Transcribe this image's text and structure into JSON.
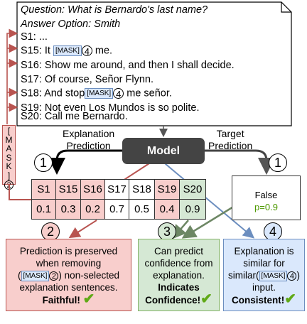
{
  "document": {
    "question": "Question: What is Bernardo's last name?",
    "answer_option": "Answer Option: Smith",
    "lines": [
      {
        "id": "S1:",
        "text": " ..."
      },
      {
        "id": "S15:",
        "pre": " It ",
        "mask": "[MASK]",
        "mask_num": "4",
        "post": " me."
      },
      {
        "id": "S16:",
        "text": " Show me around, and then I shall decide."
      },
      {
        "id": "S17:",
        "text": " Of course, Señor Flynn."
      },
      {
        "id": "S18:",
        "pre": " And stop",
        "mask": "[MASK]",
        "mask_num": "4",
        "post": " me señor."
      },
      {
        "id": "S19:",
        "text": " Not even Los Mundos is so polite."
      },
      {
        "id": "S20:",
        "text": " Call me Bernardo."
      }
    ]
  },
  "side_mask": {
    "letters": [
      "[",
      "M",
      "A",
      "S",
      "K",
      "]"
    ],
    "num": "2"
  },
  "labels": {
    "explanation_prediction_1": "Explanation",
    "explanation_prediction_2": "Prediction",
    "target_prediction_1": "Target",
    "target_prediction_2": "Prediction",
    "model": "Model"
  },
  "steps": {
    "one_left": "1",
    "one_right": "1",
    "two": "2",
    "three": "3",
    "four": "4"
  },
  "table": {
    "headers": [
      "S1",
      "S15",
      "S16",
      "S17",
      "S18",
      "S19",
      "S20"
    ],
    "values": [
      "0.1",
      "0.3",
      "0.2",
      "0.7",
      "0.5",
      "0.4",
      "0.9"
    ]
  },
  "target_box": {
    "label": "False",
    "prob": "p=0.9"
  },
  "cards": {
    "faithful": {
      "l1": "Prediction is preserved",
      "l2": "when removing",
      "mask": "[MASK]",
      "num": "2",
      "l3_post": " non-selected",
      "l4": "explanation sentences.",
      "bold": "Faithful!"
    },
    "confidence": {
      "l1": "Can predict",
      "l2": "confidence from",
      "l3": "explanation.",
      "bold1": "Indicates",
      "bold2": "Confidence!"
    },
    "consistent": {
      "l1": "Explanation is",
      "l2": "similar for",
      "l3_pre": "similar(",
      "mask": "[MASK]",
      "num": "4",
      "l3_post": ")",
      "l4": "input.",
      "bold": "Consistent!"
    }
  },
  "check_mark": "✔",
  "colors": {
    "red": "#f8cecc",
    "red_border": "#b85450",
    "green": "#d5e8d4",
    "green_border": "#82b366",
    "blue": "#dae8fc",
    "blue_border": "#6c8ebf",
    "check": "#60a917",
    "model_bg": "#444444"
  }
}
